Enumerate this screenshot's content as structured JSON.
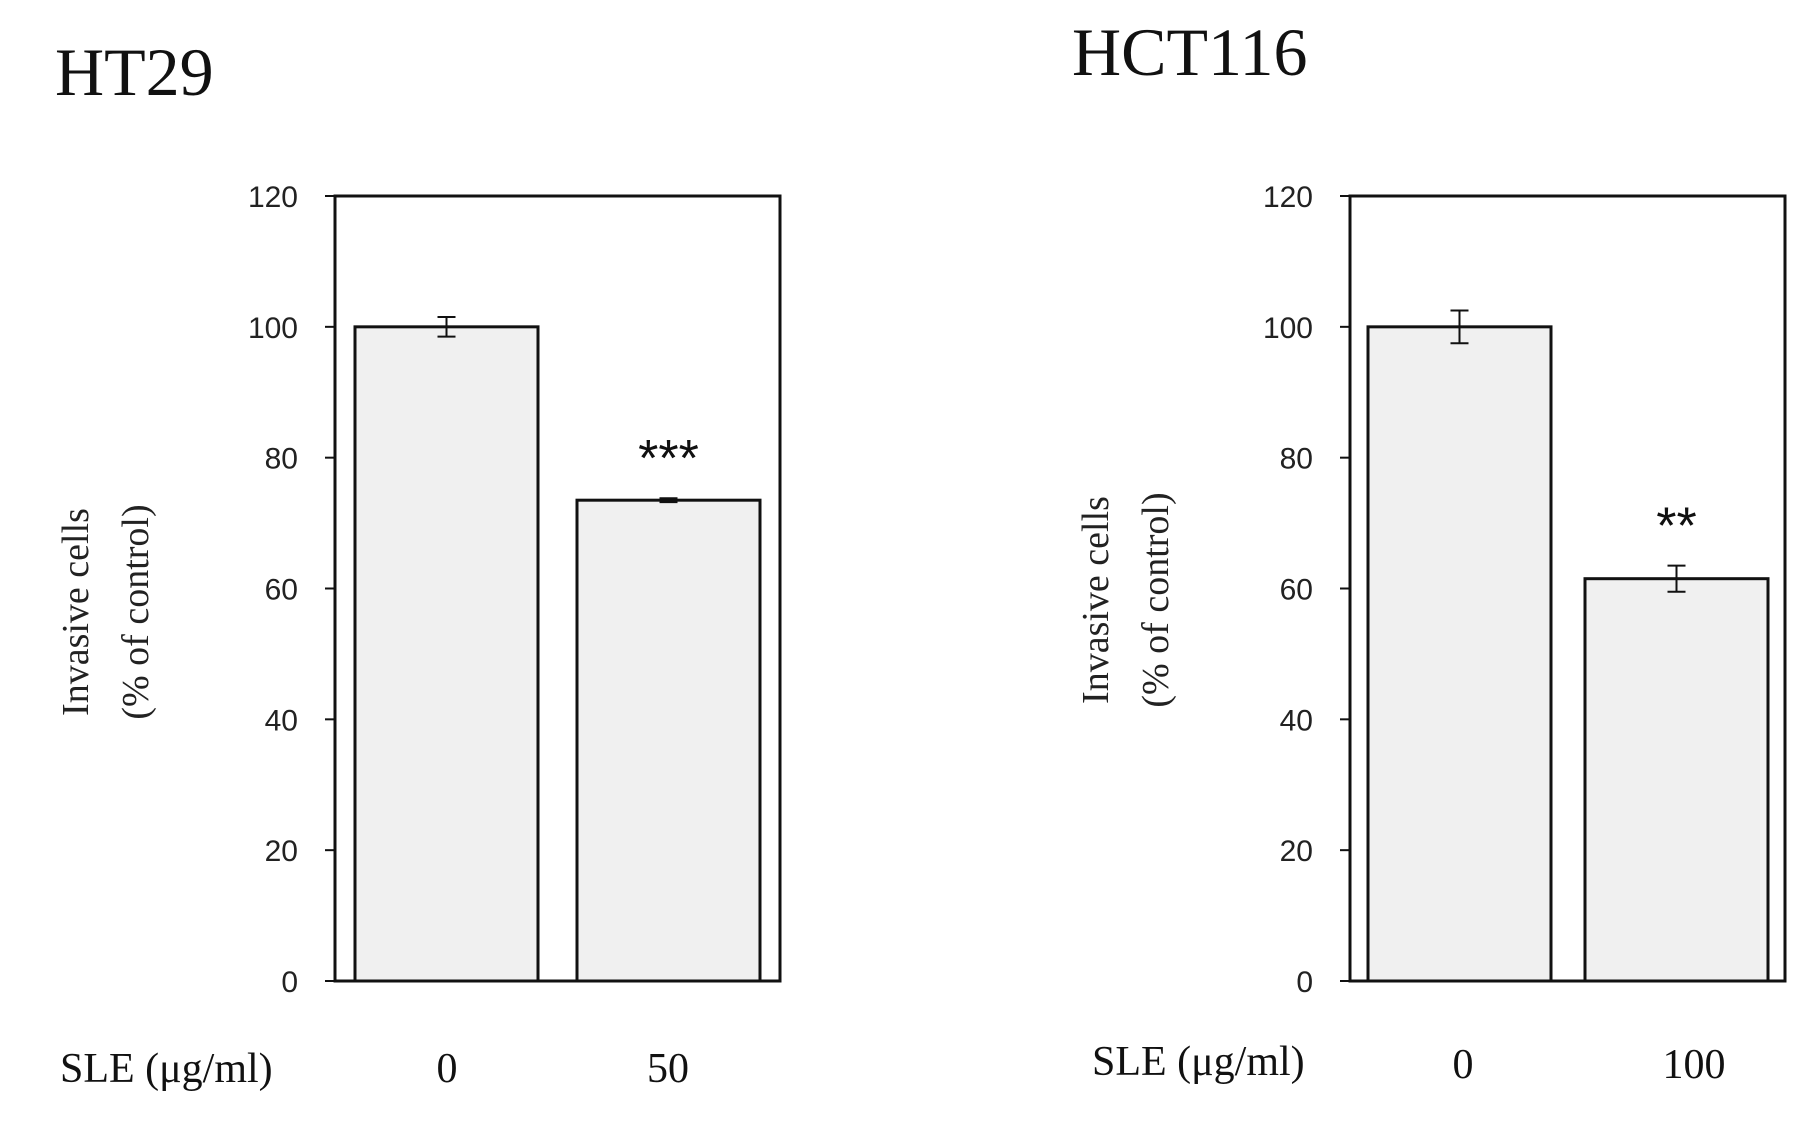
{
  "chart_data": [
    {
      "type": "bar",
      "title": "HT29",
      "xlabel": "SLE (μg/ml)",
      "ylabel_lines": [
        "Invasive cells",
        "(% of control)"
      ],
      "categories": [
        "0",
        "50"
      ],
      "values": [
        100,
        73.5
      ],
      "errors": [
        1.5,
        0.3
      ],
      "significance": [
        "",
        "***"
      ],
      "ylim": [
        0,
        120
      ],
      "yticks": [
        0,
        20,
        40,
        60,
        80,
        100,
        120
      ],
      "bar_color": "#f0f0f0",
      "grid": false
    },
    {
      "type": "bar",
      "title": "HCT116",
      "xlabel": "SLE (μg/ml)",
      "ylabel_lines": [
        "Invasive cells",
        "(% of control)"
      ],
      "categories": [
        "0",
        "100"
      ],
      "values": [
        100,
        61.5
      ],
      "errors": [
        2.5,
        2.0
      ],
      "significance": [
        "",
        "**"
      ],
      "ylim": [
        0,
        120
      ],
      "yticks": [
        0,
        20,
        40,
        60,
        80,
        100,
        120
      ],
      "bar_color": "#f0f0f0",
      "grid": false
    }
  ]
}
